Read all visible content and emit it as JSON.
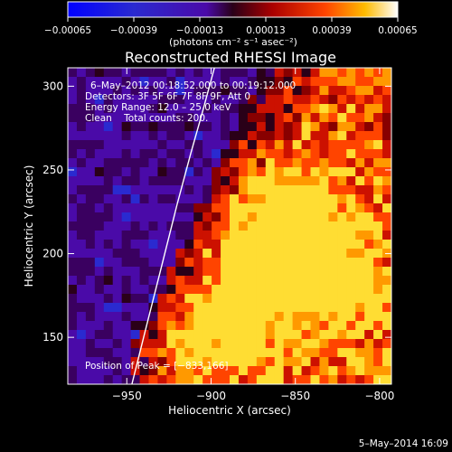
{
  "chart_data": {
    "type": "heatmap",
    "title": "Reconstructed RHESSI Image",
    "xlabel": "Heliocentric X (arcsec)",
    "ylabel": "Heliocentric Y (arcsec)",
    "xlim": [
      -985,
      -793
    ],
    "ylim": [
      122,
      311
    ],
    "x_ticks": [
      -950,
      -900,
      -850,
      -800
    ],
    "y_ticks": [
      150,
      200,
      250,
      300
    ],
    "x_tick_labels": [
      "−950",
      "−900",
      "−850",
      "−800"
    ],
    "y_tick_labels": [
      "150",
      "200",
      "250",
      "300"
    ],
    "colorbar": {
      "range": [
        -0.00065,
        0.00065
      ],
      "ticks": [
        -0.00065,
        -0.00039,
        -0.00013,
        0.00013,
        0.00039,
        0.00065
      ],
      "tick_labels": [
        "−0.00065",
        "−0.00039",
        "−0.00013",
        "0.00013",
        "0.00039",
        "0.00065"
      ],
      "unit_label": "(photons cm⁻² s⁻¹ asec⁻²)"
    },
    "annotations": [
      "6–May–2012 00:18:52.000 to 00:19:12.000",
      "Detectors: 3F 5F 6F 7F 8F 9F, Att 0",
      "Energy Range: 12.0 – 25.0 keV",
      "Clean    Total counts: 200."
    ],
    "peak_label": "Position of Peak = [−833,166]",
    "peak_position": [
      -833,
      166
    ],
    "limb_curve": {
      "x": [
        -947,
        -940,
        -930,
        -920,
        -912,
        -905,
        -898
      ],
      "y": [
        122,
        150,
        190,
        230,
        260,
        285,
        311
      ]
    },
    "timestamp": "5–May–2014 16:09"
  }
}
